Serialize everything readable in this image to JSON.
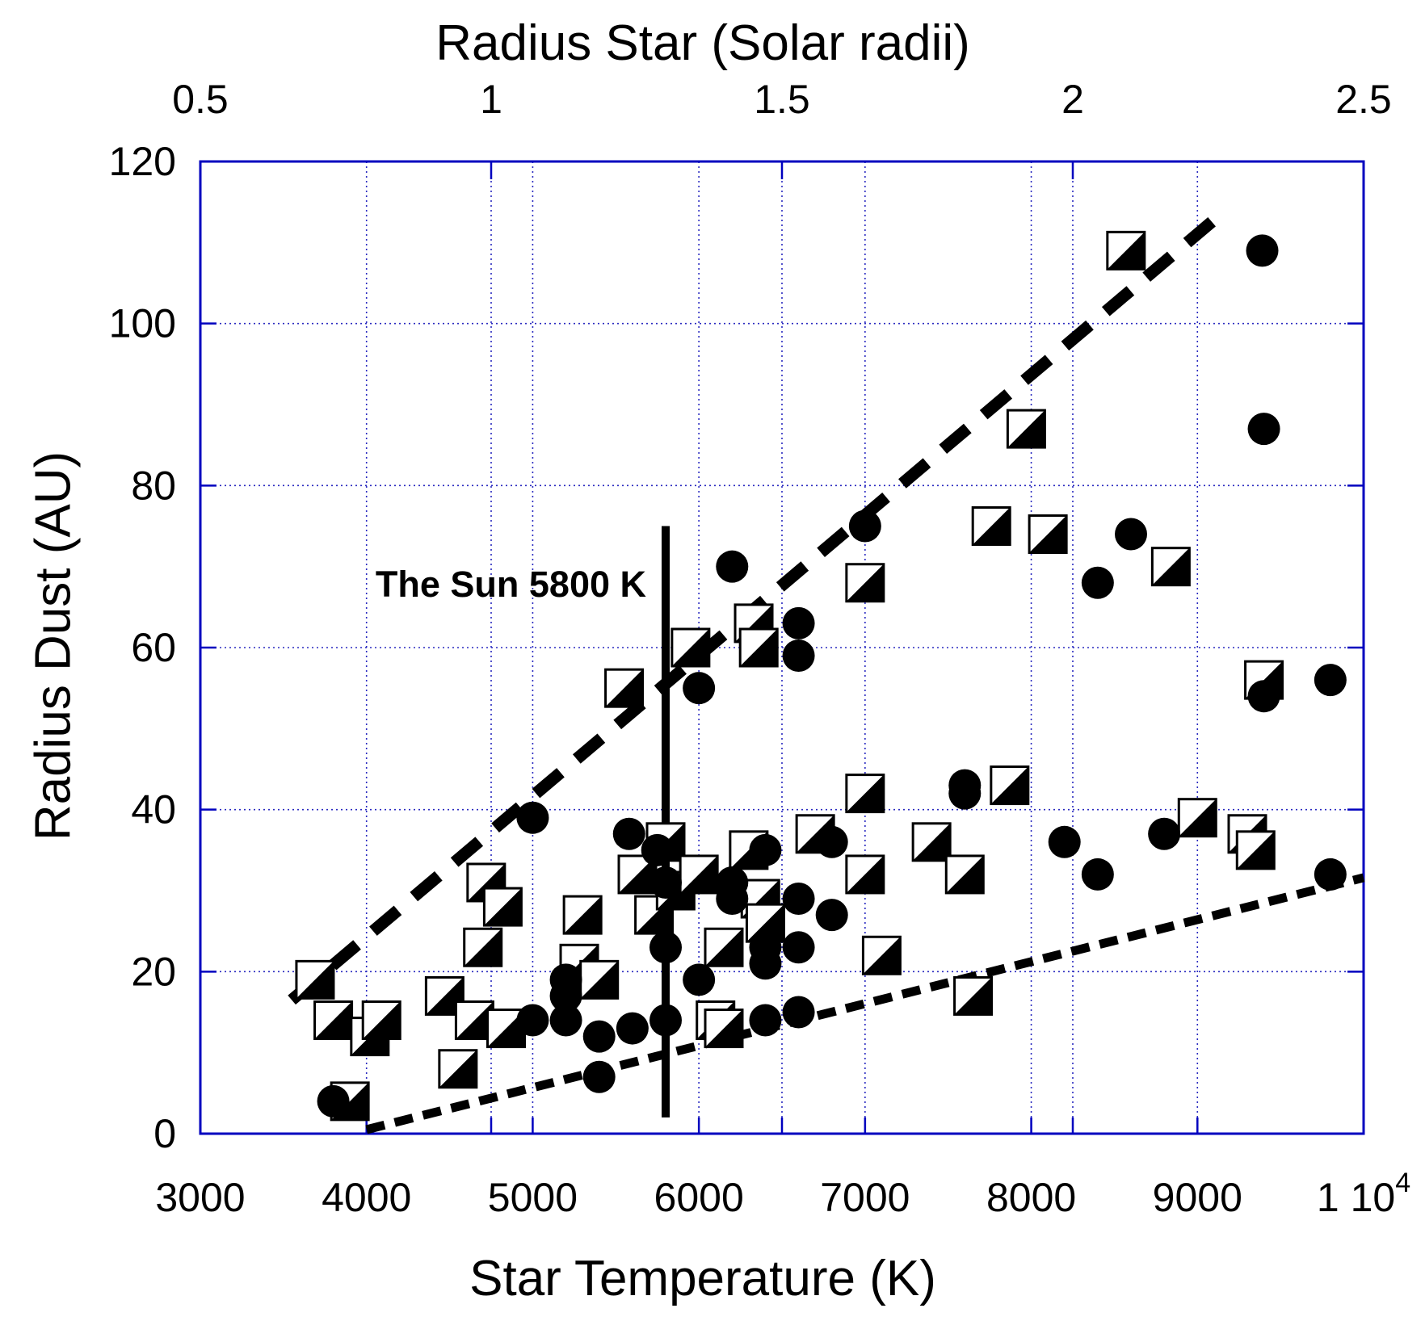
{
  "colors": {
    "background": "#ffffff",
    "axis": "#0000bf",
    "grid": "#2a2ac0",
    "marker": "#000000",
    "annotation_line": "#000000"
  },
  "chart_data": {
    "type": "scatter",
    "x_axis": {
      "label": "Star Temperature (K)",
      "min": 3000,
      "max": 10000,
      "ticks": [
        {
          "v": 3000,
          "label": "3000"
        },
        {
          "v": 4000,
          "label": "4000"
        },
        {
          "v": 5000,
          "label": "5000"
        },
        {
          "v": 6000,
          "label": "6000"
        },
        {
          "v": 7000,
          "label": "7000"
        },
        {
          "v": 8000,
          "label": "8000"
        },
        {
          "v": 9000,
          "label": "9000"
        },
        {
          "v": 10000,
          "label": "1 10",
          "sup": "4"
        }
      ],
      "gridlines": [
        4000,
        5000,
        6000,
        7000,
        8000,
        9000
      ]
    },
    "top_axis": {
      "label": "Radius Star (Solar radii)",
      "min": 0.5,
      "max": 2.5,
      "ticks": [
        {
          "v": 0.5,
          "label": "0.5"
        },
        {
          "v": 1,
          "label": "1"
        },
        {
          "v": 1.5,
          "label": "1.5"
        },
        {
          "v": 2,
          "label": "2"
        },
        {
          "v": 2.5,
          "label": "2.5"
        }
      ],
      "gridlines": [
        1,
        1.5,
        2
      ]
    },
    "y_axis": {
      "label": "Radius Dust (AU)",
      "min": 0,
      "max": 120,
      "ticks": [
        {
          "v": 0,
          "label": "0"
        },
        {
          "v": 20,
          "label": "20"
        },
        {
          "v": 40,
          "label": "40"
        },
        {
          "v": 60,
          "label": "60"
        },
        {
          "v": 80,
          "label": "80"
        },
        {
          "v": 100,
          "label": "100"
        },
        {
          "v": 120,
          "label": "120"
        }
      ],
      "gridlines": [
        20,
        40,
        60,
        80,
        100
      ]
    },
    "grid_on": true,
    "legend": "none",
    "series": [
      {
        "name": "half-filled-square",
        "marker": "half-filled-square",
        "points": [
          [
            3690,
            19
          ],
          [
            3800,
            14
          ],
          [
            3900,
            4
          ],
          [
            4020,
            12
          ],
          [
            4090,
            14
          ],
          [
            4470,
            17
          ],
          [
            4550,
            8
          ],
          [
            4650,
            14
          ],
          [
            4700,
            23
          ],
          [
            4720,
            31
          ],
          [
            4820,
            28
          ],
          [
            4840,
            13
          ],
          [
            5280,
            21
          ],
          [
            5300,
            27
          ],
          [
            5400,
            19
          ],
          [
            5550,
            55
          ],
          [
            5630,
            32
          ],
          [
            5730,
            27
          ],
          [
            5800,
            36
          ],
          [
            5860,
            30
          ],
          [
            5950,
            60
          ],
          [
            6000,
            32
          ],
          [
            6100,
            14
          ],
          [
            6150,
            13
          ],
          [
            6150,
            23
          ],
          [
            6300,
            35
          ],
          [
            6330,
            63
          ],
          [
            6360,
            60
          ],
          [
            6370,
            29
          ],
          [
            6400,
            26
          ],
          [
            6700,
            37
          ],
          [
            7000,
            32
          ],
          [
            7000,
            42
          ],
          [
            7000,
            68
          ],
          [
            7100,
            22
          ],
          [
            7400,
            36
          ],
          [
            7600,
            32
          ],
          [
            7650,
            17
          ],
          [
            7760,
            75
          ],
          [
            7870,
            43
          ],
          [
            7970,
            87
          ],
          [
            8100,
            74
          ],
          [
            8570,
            109
          ],
          [
            8840,
            70
          ],
          [
            9000,
            39
          ],
          [
            9300,
            37
          ],
          [
            9350,
            35
          ],
          [
            9400,
            56
          ]
        ]
      },
      {
        "name": "filled-circle",
        "marker": "filled-circle",
        "points": [
          [
            3800,
            4
          ],
          [
            5000,
            14
          ],
          [
            5000,
            39
          ],
          [
            5200,
            14
          ],
          [
            5200,
            17
          ],
          [
            5200,
            19
          ],
          [
            5400,
            7
          ],
          [
            5400,
            12
          ],
          [
            5580,
            37
          ],
          [
            5600,
            13
          ],
          [
            5750,
            35
          ],
          [
            5800,
            14
          ],
          [
            5800,
            23
          ],
          [
            5800,
            31
          ],
          [
            6000,
            19
          ],
          [
            6000,
            55
          ],
          [
            6200,
            29
          ],
          [
            6200,
            31
          ],
          [
            6200,
            70
          ],
          [
            6400,
            14
          ],
          [
            6400,
            21
          ],
          [
            6400,
            23
          ],
          [
            6400,
            35
          ],
          [
            6600,
            15
          ],
          [
            6600,
            23
          ],
          [
            6600,
            29
          ],
          [
            6600,
            59
          ],
          [
            6600,
            63
          ],
          [
            6800,
            27
          ],
          [
            6800,
            36
          ],
          [
            7000,
            75
          ],
          [
            7600,
            42
          ],
          [
            7600,
            43
          ],
          [
            8200,
            36
          ],
          [
            8400,
            32
          ],
          [
            8400,
            68
          ],
          [
            8600,
            74
          ],
          [
            8800,
            37
          ],
          [
            9390,
            109
          ],
          [
            9400,
            54
          ],
          [
            9400,
            87
          ],
          [
            9800,
            32
          ],
          [
            9800,
            56
          ]
        ]
      }
    ],
    "lines": [
      {
        "name": "upper-envelope",
        "style": "long-dash",
        "from": [
          3550,
          16.5
        ],
        "to": [
          9170,
          114
        ]
      },
      {
        "name": "lower-envelope",
        "style": "short-dash",
        "from": [
          4000,
          0.5
        ],
        "to": [
          10000,
          31.6
        ]
      },
      {
        "name": "sun-line",
        "style": "solid-vertical",
        "x": 5800,
        "y_from": 2,
        "y_to": 75
      }
    ],
    "annotation": {
      "text": "The Sun 5800 K"
    }
  }
}
